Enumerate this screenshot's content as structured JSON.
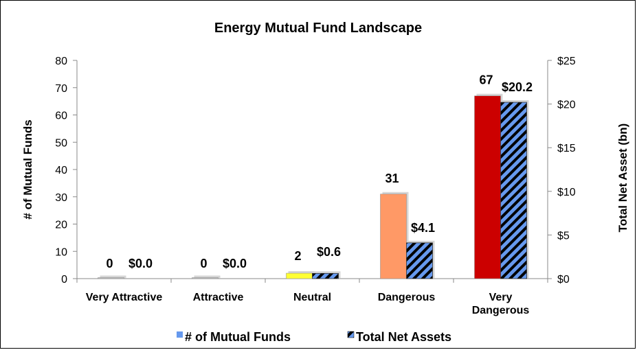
{
  "chart_data": {
    "type": "bar",
    "title": "Energy Mutual Fund Landscape",
    "categories": [
      [
        "Very Attractive"
      ],
      [
        "Attractive"
      ],
      [
        "Neutral"
      ],
      [
        "Dangerous"
      ],
      [
        "Very",
        "Dangerous"
      ]
    ],
    "category_labels": [
      "Very Attractive",
      "Attractive",
      "Neutral",
      "Dangerous",
      "Very Dangerous"
    ],
    "series": [
      {
        "name": "# of Mutual Funds",
        "axis": "left",
        "values": [
          0,
          0,
          2,
          31,
          67
        ],
        "labels": [
          "0",
          "0",
          "2",
          "31",
          "67"
        ],
        "colors": [
          "#c0c0c0",
          "#c0c0c0",
          "#ffff33",
          "#ff9966",
          "#cc0000"
        ]
      },
      {
        "name": "Total Net Assets",
        "axis": "right",
        "values": [
          0.0,
          0.0,
          0.6,
          4.1,
          20.2
        ],
        "labels": [
          "$0.0",
          "$0.0",
          "$0.6",
          "$4.1",
          "$20.2"
        ],
        "fill": "#6699ee",
        "stripe": "#000000"
      }
    ],
    "ylabel": "# of Mutual Funds",
    "y2label": "Total Net Asset (bn)",
    "ylim": [
      0,
      80
    ],
    "y2lim": [
      0,
      25
    ],
    "yticks": [
      "0",
      "10",
      "20",
      "30",
      "40",
      "50",
      "60",
      "70",
      "80"
    ],
    "y2ticks": [
      "$0",
      "$5",
      "$10",
      "$15",
      "$20",
      "$25"
    ],
    "legend": "bottom",
    "grid": false
  }
}
